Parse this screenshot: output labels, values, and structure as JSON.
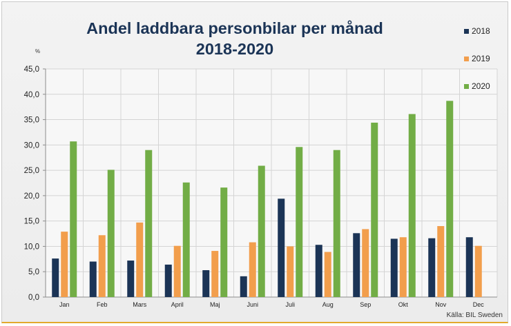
{
  "chart_data": {
    "type": "bar",
    "title": "Andel laddbara personbilar per månad",
    "subtitle": "2018-2020",
    "ylabel": "%",
    "xlabel": "",
    "source": "Källa: BIL Sweden",
    "categories": [
      "Jan",
      "Feb",
      "Mars",
      "April",
      "Maj",
      "Juni",
      "Juli",
      "Aug",
      "Sep",
      "Okt",
      "Nov",
      "Dec"
    ],
    "ylim": [
      0,
      45
    ],
    "yticks": [
      "0,0",
      "5,0",
      "10,0",
      "15,0",
      "20,0",
      "25,0",
      "30,0",
      "35,0",
      "40,0",
      "45,0"
    ],
    "grid": true,
    "legend_position": "right",
    "series": [
      {
        "name": "2018",
        "color": "#1b3456",
        "values": [
          7.6,
          7.0,
          7.2,
          6.4,
          5.3,
          4.1,
          19.4,
          10.3,
          12.6,
          11.5,
          11.6,
          11.8
        ]
      },
      {
        "name": "2019",
        "color": "#f29e4c",
        "values": [
          12.9,
          12.2,
          14.7,
          10.1,
          9.1,
          10.8,
          10.0,
          8.9,
          13.4,
          11.8,
          14.0,
          10.1
        ]
      },
      {
        "name": "2020",
        "color": "#72ad46",
        "values": [
          30.7,
          25.1,
          29.0,
          22.6,
          21.6,
          25.9,
          29.6,
          29.0,
          34.4,
          36.1,
          38.7,
          null
        ]
      }
    ]
  }
}
